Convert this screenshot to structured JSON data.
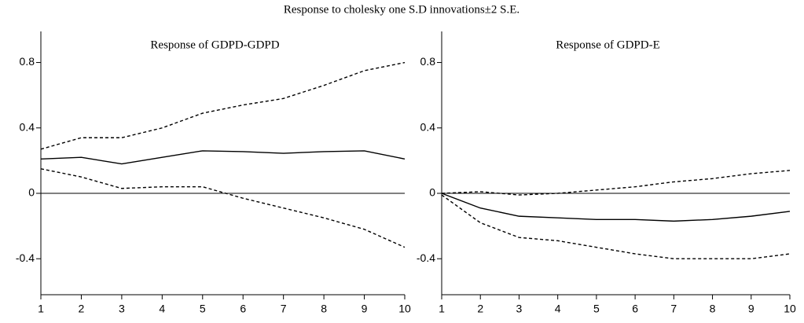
{
  "title": "Response to cholesky one S.D innovations±2 S.E.",
  "chart_data": [
    {
      "type": "line",
      "title": "Response of GDPD-GDPD",
      "x": [
        1,
        2,
        3,
        4,
        5,
        6,
        7,
        8,
        9,
        10
      ],
      "series": [
        {
          "color": "#000000",
          "dashed": false,
          "values": [
            0.21,
            0.22,
            0.18,
            0.22,
            0.26,
            0.255,
            0.245,
            0.255,
            0.26,
            0.21
          ]
        },
        {
          "color": "#000000",
          "dashed": true,
          "values": [
            0.27,
            0.34,
            0.34,
            0.4,
            0.49,
            0.54,
            0.58,
            0.66,
            0.75,
            0.8
          ]
        },
        {
          "color": "#000000",
          "dashed": true,
          "values": [
            0.15,
            0.1,
            0.03,
            0.04,
            0.04,
            -0.03,
            -0.09,
            -0.15,
            -0.22,
            -0.33
          ]
        }
      ],
      "xlim": [
        1,
        10
      ],
      "xticks": [
        1,
        2,
        3,
        4,
        5,
        6,
        7,
        8,
        9,
        10
      ],
      "ylim": [
        -0.62,
        0.99
      ],
      "yticks": [
        -0.4,
        0,
        0.4,
        0.8
      ]
    },
    {
      "type": "line",
      "title": "Response of GDPD-E",
      "x": [
        1,
        2,
        3,
        4,
        5,
        6,
        7,
        8,
        9,
        10
      ],
      "series": [
        {
          "color": "#000000",
          "dashed": false,
          "values": [
            0,
            -0.09,
            -0.14,
            -0.15,
            -0.16,
            -0.16,
            -0.17,
            -0.16,
            -0.14,
            -0.11
          ]
        },
        {
          "color": "#000000",
          "dashed": true,
          "values": [
            0,
            0.01,
            -0.01,
            0,
            0.02,
            0.04,
            0.07,
            0.09,
            0.12,
            0.14
          ]
        },
        {
          "color": "#000000",
          "dashed": true,
          "values": [
            -0.01,
            -0.18,
            -0.27,
            -0.29,
            -0.33,
            -0.37,
            -0.4,
            -0.4,
            -0.4,
            -0.37
          ]
        }
      ],
      "xlim": [
        1,
        10
      ],
      "xticks": [
        1,
        2,
        3,
        4,
        5,
        6,
        7,
        8,
        9,
        10
      ],
      "ylim": [
        -0.62,
        0.99
      ],
      "yticks": [
        -0.4,
        0,
        0.4,
        0.8
      ]
    }
  ]
}
